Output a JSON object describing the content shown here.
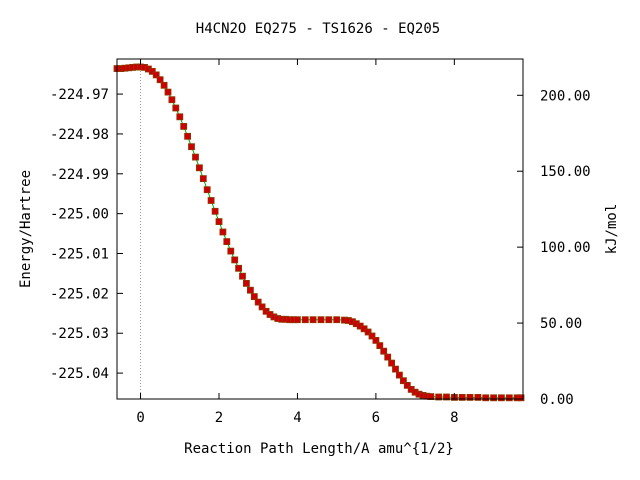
{
  "chart_data": {
    "type": "line",
    "title": "H4CN2O   EQ275 - TS1626 - EQ205",
    "xlabel": "Reaction Path Length/A amu^{1/2}",
    "ylabel": "Energy/Hartree",
    "y2label": "kJ/mol",
    "xlim": [
      -0.6,
      9.75
    ],
    "ylim": [
      -225.0465,
      -224.9612
    ],
    "y2lim": [
      0.0,
      223.9
    ],
    "x_ticks": [
      0,
      2,
      4,
      6,
      8
    ],
    "x_tick_labels": [
      "0",
      "2",
      "4",
      "6",
      "8"
    ],
    "y_ticks": [
      -224.97,
      -224.98,
      -224.99,
      -225.0,
      -225.01,
      -225.02,
      -225.03,
      -225.04
    ],
    "y_tick_labels": [
      "-224.97",
      "-224.98",
      "-224.99",
      "-225.00",
      "-225.01",
      "-225.02",
      "-225.03",
      "-225.04"
    ],
    "y2_ticks": [
      0,
      50,
      100,
      150,
      200
    ],
    "y2_tick_labels": [
      "0.00",
      "50.00",
      "100.00",
      "150.00",
      "200.00"
    ],
    "ts_marker_x": 0,
    "grid": false,
    "colors": {
      "line": "#00aa00",
      "marker": "#cc0000",
      "marker_edge": "#8b3a00",
      "ts_line": "#999999"
    },
    "series": [
      {
        "x": [
          -0.6,
          -0.5,
          -0.4,
          -0.3,
          -0.2,
          -0.1,
          0.0,
          0.1,
          0.2,
          0.3,
          0.4,
          0.5,
          0.6,
          0.7,
          0.8,
          0.9,
          1.0,
          1.1,
          1.2,
          1.3,
          1.4,
          1.5,
          1.6,
          1.7,
          1.8,
          1.9,
          2.0,
          2.1,
          2.2,
          2.3,
          2.4,
          2.5,
          2.6,
          2.7,
          2.8,
          2.9,
          3.0,
          3.1,
          3.2,
          3.3,
          3.4,
          3.5,
          3.6,
          3.7,
          3.8,
          3.9,
          4.0,
          4.2,
          4.4,
          4.6,
          4.8,
          5.0,
          5.2,
          5.3,
          5.4,
          5.5,
          5.6,
          5.7,
          5.8,
          5.9,
          6.0,
          6.1,
          6.2,
          6.3,
          6.4,
          6.5,
          6.6,
          6.7,
          6.8,
          6.9,
          7.0,
          7.1,
          7.2,
          7.3,
          7.4,
          7.6,
          7.8,
          8.0,
          8.2,
          8.4,
          8.6,
          8.8,
          9.0,
          9.2,
          9.4,
          9.6,
          9.7
        ],
        "y": [
          -224.9636,
          -224.9636,
          -224.9635,
          -224.9634,
          -224.9633,
          -224.9632,
          -224.9632,
          -224.9633,
          -224.9637,
          -224.9643,
          -224.9652,
          -224.9664,
          -224.9678,
          -224.9695,
          -224.9714,
          -224.9735,
          -224.9757,
          -224.9781,
          -224.9806,
          -224.9832,
          -224.9858,
          -224.9885,
          -224.9912,
          -224.994,
          -224.9967,
          -224.9994,
          -225.002,
          -225.0046,
          -225.007,
          -225.0094,
          -225.0116,
          -225.0137,
          -225.0157,
          -225.0175,
          -225.0192,
          -225.0208,
          -225.0222,
          -225.0234,
          -225.0245,
          -225.0253,
          -225.0259,
          -225.0263,
          -225.0265,
          -225.0265,
          -225.0266,
          -225.0266,
          -225.0266,
          -225.0266,
          -225.0266,
          -225.0266,
          -225.0266,
          -225.0266,
          -225.0267,
          -225.0268,
          -225.0271,
          -225.0276,
          -225.0282,
          -225.0289,
          -225.0297,
          -225.0307,
          -225.0318,
          -225.0331,
          -225.0345,
          -225.036,
          -225.0375,
          -225.039,
          -225.0405,
          -225.0419,
          -225.0431,
          -225.0441,
          -225.0448,
          -225.0453,
          -225.0456,
          -225.0458,
          -225.0459,
          -225.046,
          -225.046,
          -225.0461,
          -225.0461,
          -225.0461,
          -225.0461,
          -225.0462,
          -225.0462,
          -225.0462,
          -225.0462,
          -225.0462,
          -225.0462
        ]
      }
    ]
  }
}
